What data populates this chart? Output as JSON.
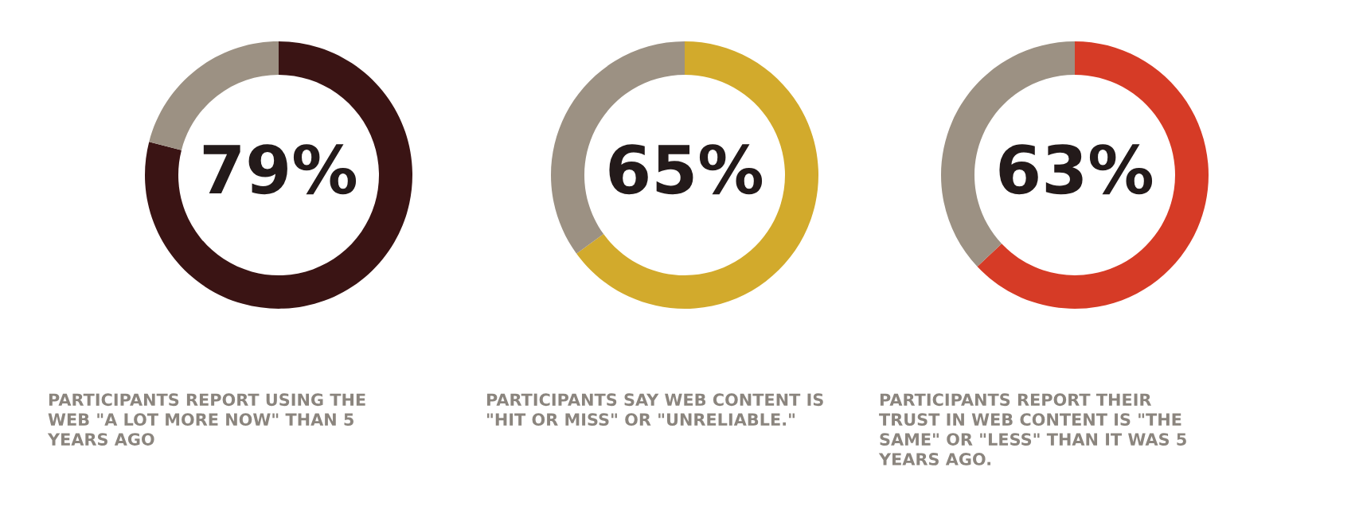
{
  "chart_data": [
    {
      "type": "donut",
      "categories": [
        null,
        null
      ],
      "values": [
        79,
        21
      ],
      "colors": [
        "#3a1414",
        "#9c9183"
      ],
      "value_labels": [
        "79%",
        null
      ],
      "annotations": [
        "PARTICIPANTS REPORT USING THE\nWEB \"A LOT MORE NOW\" THAN 5\nYEARS AGO"
      ]
    },
    {
      "type": "donut",
      "categories": [
        null,
        null
      ],
      "values": [
        65,
        35
      ],
      "colors": [
        "#d2aa2c",
        "#9c9183"
      ],
      "value_labels": [
        "65%",
        null
      ],
      "annotations": [
        "PARTICIPANTS SAY WEB CONTENT IS\n\"HIT OR MISS\" OR \"UNRELIABLE.\""
      ]
    },
    {
      "type": "donut",
      "categories": [
        null,
        null
      ],
      "values": [
        63,
        37
      ],
      "colors": [
        "#d63b26",
        "#9c9183"
      ],
      "value_labels": [
        "63%",
        null
      ],
      "annotations": [
        "PARTICIPANTS REPORT THEIR\nTRUST IN WEB CONTENT IS \"THE\nSAME\" OR \"LESS\" THAN IT WAS 5\nYEARS AGO."
      ]
    }
  ]
}
